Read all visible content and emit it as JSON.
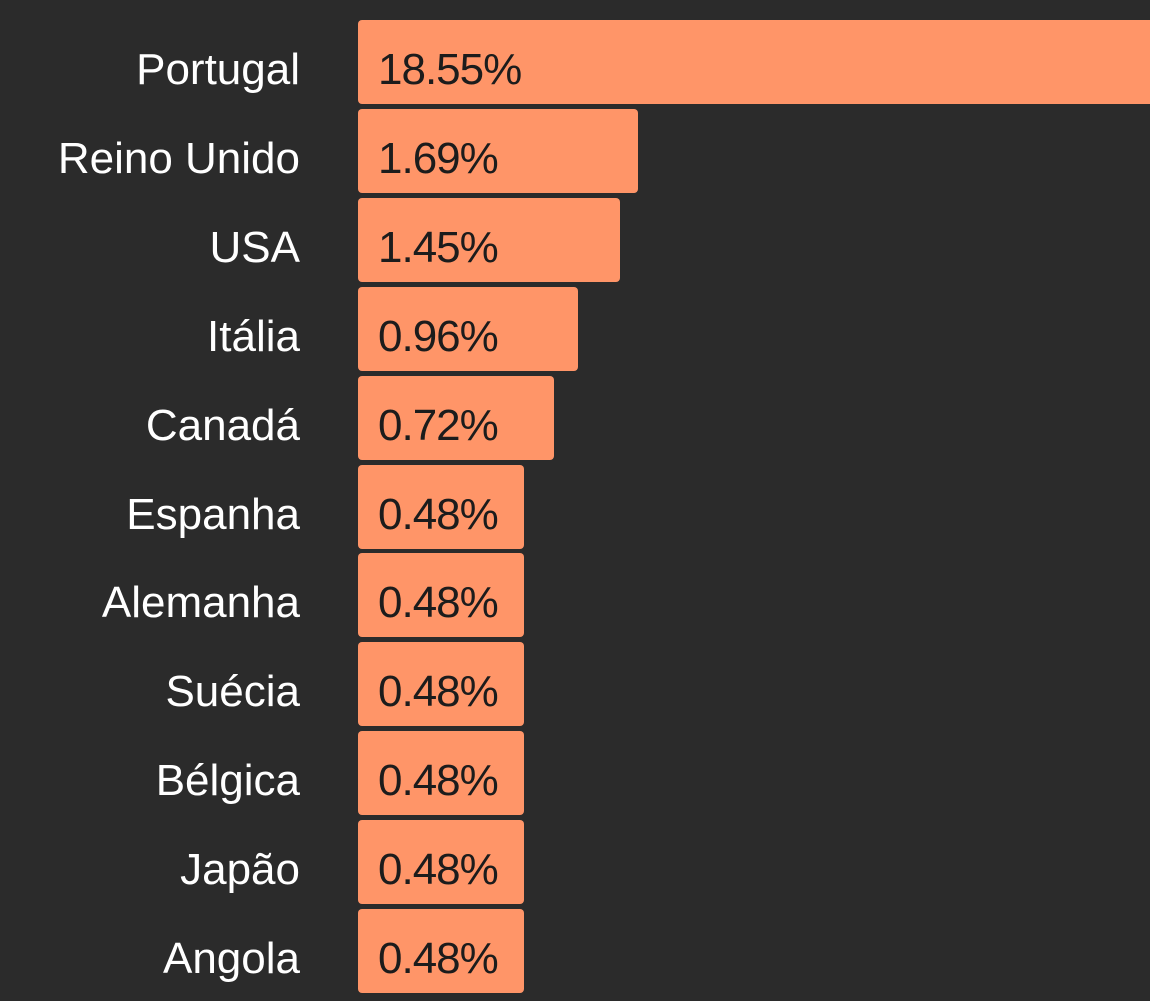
{
  "chart_data": {
    "type": "bar",
    "orientation": "horizontal",
    "categories": [
      "Portugal",
      "Reino Unido",
      "USA",
      "Itália",
      "Canadá",
      "Espanha",
      "Alemanha",
      "Suécia",
      "Bélgica",
      "Japão",
      "Angola"
    ],
    "values": [
      18.55,
      1.69,
      1.45,
      0.96,
      0.72,
      0.48,
      0.48,
      0.48,
      0.48,
      0.48,
      0.48
    ],
    "value_labels": [
      "18.55%",
      "1.69%",
      "1.45%",
      "0.96%",
      "0.72%",
      "0.48%",
      "0.48%",
      "0.48%",
      "0.48%",
      "0.48%",
      "0.48%"
    ],
    "color": "#ff9568"
  }
}
